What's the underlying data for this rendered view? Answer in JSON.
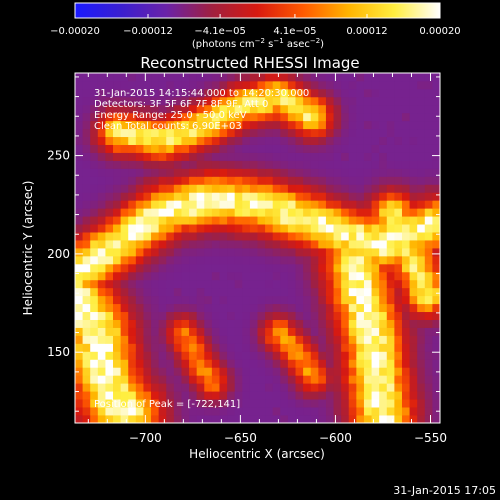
{
  "chart_data": {
    "type": "heatmap",
    "title": "Reconstructed RHESSI Image",
    "xlabel": "Heliocentric X (arcsec)",
    "ylabel": "Heliocentric Y (arcsec)",
    "xlim": [
      -737,
      -545
    ],
    "ylim": [
      114,
      292
    ],
    "x_ticks": [
      -700,
      -650,
      -600,
      -550
    ],
    "x_tick_labels": [
      "−700",
      "−650",
      "−600",
      "−550"
    ],
    "y_ticks": [
      150,
      200,
      250
    ],
    "y_tick_labels": [
      "150",
      "200",
      "250"
    ],
    "colorbar": {
      "range": [
        -0.0002,
        0.0002
      ],
      "ticks": [
        -0.0002,
        -0.00012,
        -4.1e-05,
        4.1e-05,
        0.00012,
        0.0002
      ],
      "tick_labels": [
        "−0.00020",
        "−0.00012",
        "−4.1e−05",
        "4.1e−05",
        "0.00012",
        "0.00020"
      ],
      "units_text": "(photons cm",
      "units_exp1": "−2",
      "units_mid": " s",
      "units_exp2": "−1",
      "units_mid2": " asec",
      "units_exp3": "−2",
      "units_end": ")",
      "colors": [
        "#1a1aff",
        "#3a1fd0",
        "#6a22a8",
        "#a02040",
        "#d81a10",
        "#ff5a00",
        "#ffb400",
        "#ffee40",
        "#ffffff"
      ]
    },
    "info_lines": [
      "31-Jan-2015 14:15:44.000 to 14:20:30.000",
      "Detectors: 3F 5F 6F 7F 8F 9F, Att 0",
      "Energy Range: 25.0 - 50.0 keV",
      "Clean     Total counts: 6.90E+03"
    ],
    "peak_text": "Position of Peak = [-722,141]",
    "grid": false,
    "image_grid_resolution": [
      48,
      44
    ]
  },
  "footer": {
    "date_stamp": "31-Jan-2015 17:05"
  },
  "colors": {
    "background": "#000000",
    "foreground": "#ffffff"
  }
}
